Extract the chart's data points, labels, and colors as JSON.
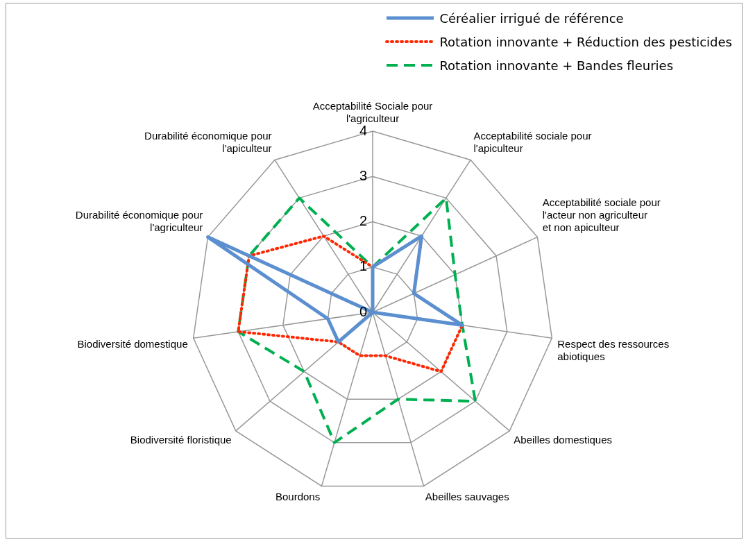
{
  "chart_data": {
    "type": "radar",
    "categories": [
      "Acceptabilité Sociale pour l'agriculteur",
      "Acceptabilité sociale pour l'apiculteur",
      "Acceptabilité sociale pour l'acteur non agriculteur et non apiculteur",
      "Respect des ressources abiotiques",
      "Abeilles domestiques",
      "Abeilles sauvages",
      "Bourdons",
      "Biodiversité floristique",
      "Biodiversité domestique",
      "Durabilité économique pour l'agriculteur",
      "Durabilité économique pour l'apiculteur"
    ],
    "series": [
      {
        "name": "Céréalier irrigué de référence",
        "color": "#5b8fcf",
        "line_style": "solid",
        "values": [
          1,
          2,
          1,
          2,
          0,
          0,
          0,
          1,
          1,
          4,
          0
        ]
      },
      {
        "name": "Rotation innovante + Réduction des pesticides",
        "color": "#ff2600",
        "line_style": "dotted",
        "values": [
          1,
          2,
          1,
          2,
          2,
          1,
          1,
          1,
          3,
          3,
          2
        ]
      },
      {
        "name": "Rotation innovante + Bandes fleuries",
        "color": "#00b050",
        "line_style": "dashed",
        "values": [
          1,
          3,
          2,
          2,
          3,
          2,
          3,
          2,
          3,
          3,
          3
        ]
      }
    ],
    "ylim": [
      0,
      4
    ],
    "yticks": [
      0,
      1,
      2,
      3,
      4
    ],
    "grid": true,
    "legend": "top right",
    "marker": "none"
  }
}
